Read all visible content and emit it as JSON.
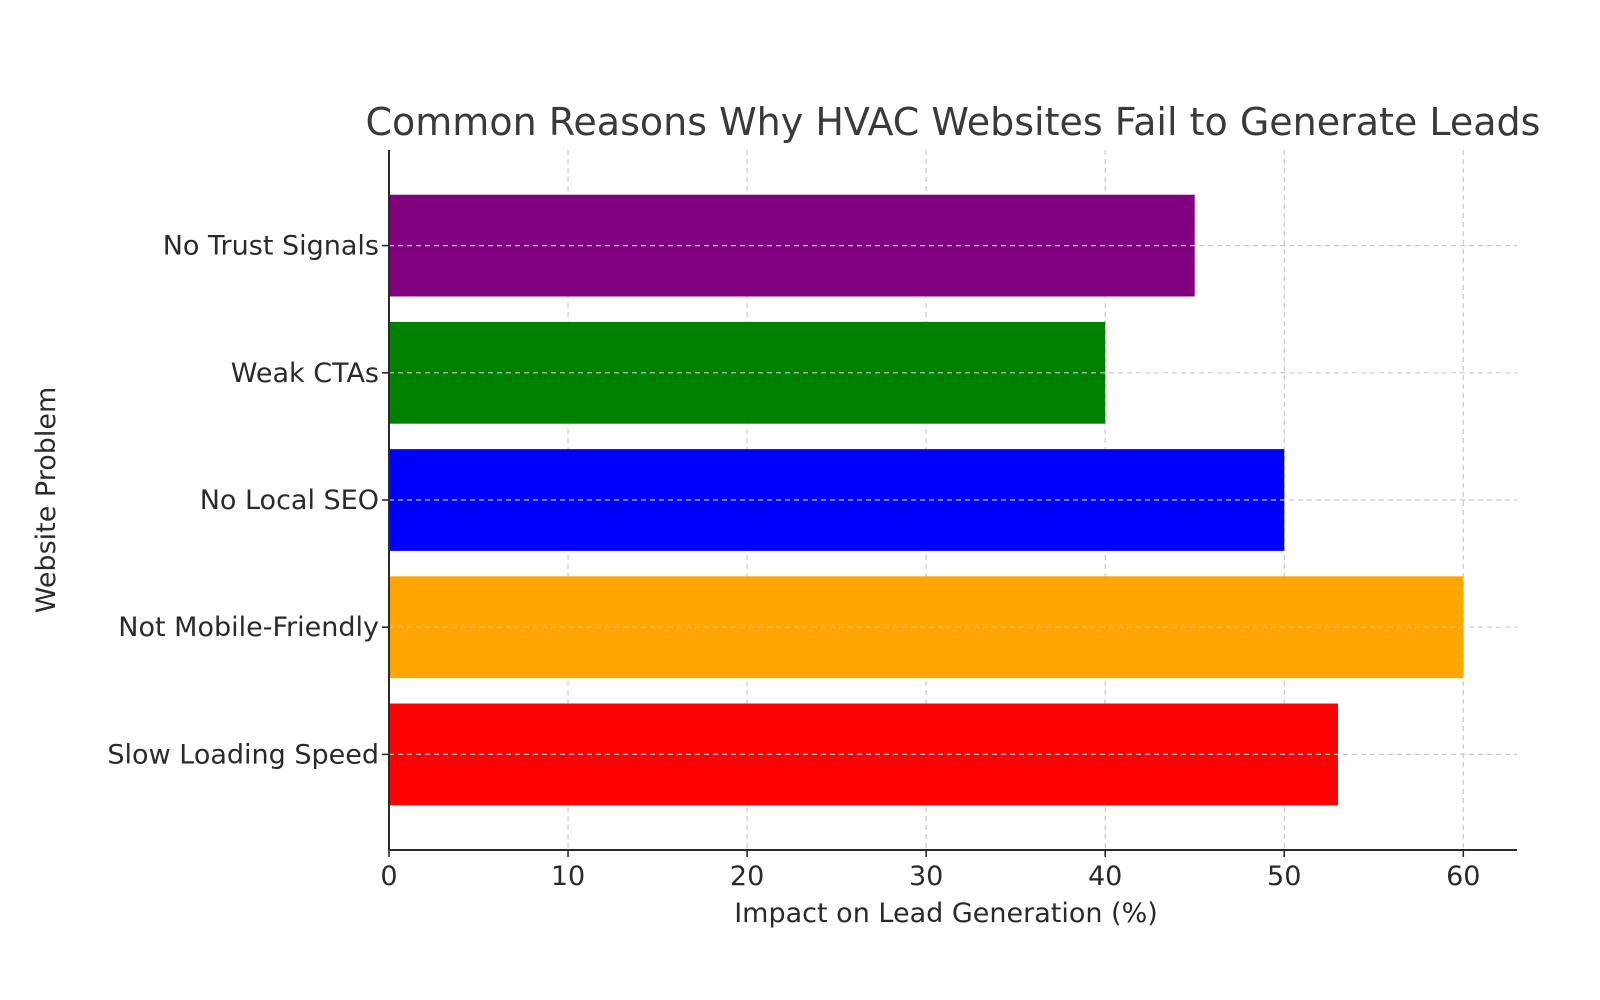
{
  "chart_data": {
    "type": "bar",
    "orientation": "horizontal",
    "title": "Common Reasons Why HVAC Websites Fail to Generate Leads",
    "xlabel": "Impact on Lead Generation (%)",
    "ylabel": "Website Problem",
    "categories": [
      "Slow Loading Speed",
      "Not Mobile-Friendly",
      "No Local SEO",
      "Weak CTAs",
      "No Trust Signals"
    ],
    "values": [
      53,
      60,
      50,
      40,
      45
    ],
    "colors": [
      "#ff0000",
      "#ffa500",
      "#0000ff",
      "#008000",
      "#800080"
    ],
    "xlim": [
      0,
      63
    ],
    "xticks": [
      0,
      10,
      20,
      30,
      40,
      50,
      60
    ],
    "grid": true
  }
}
